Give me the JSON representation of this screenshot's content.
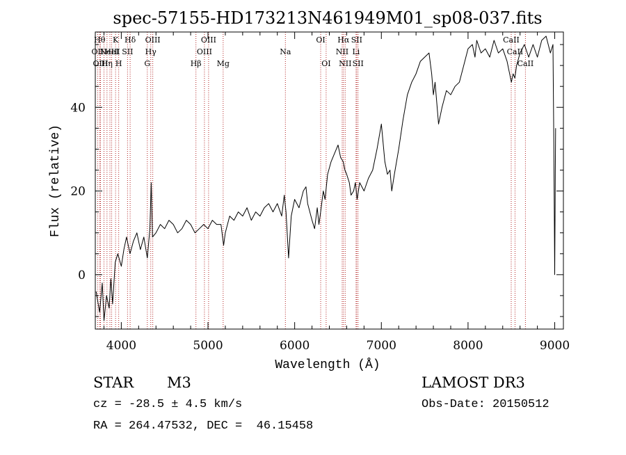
{
  "chart_data": {
    "type": "line",
    "title": "spec-57155-HD173213N461949M01_sp08-037.fits",
    "xlabel": "Wavelength (Å)",
    "ylabel": "Flux (relative)",
    "xlim": [
      3700,
      9100
    ],
    "ylim": [
      -13,
      58
    ],
    "xticks": [
      4000,
      5000,
      6000,
      7000,
      8000,
      9000
    ],
    "xtick_labels": [
      "4000",
      "5000",
      "6000",
      "7000",
      "8000",
      "9000"
    ],
    "yticks": [
      0,
      20,
      40
    ],
    "ytick_labels": [
      "0",
      "20",
      "40"
    ],
    "line_color": "#000000",
    "marker_color": "#b22222",
    "spectrum": {
      "x": [
        3710,
        3750,
        3780,
        3800,
        3830,
        3860,
        3880,
        3900,
        3930,
        3960,
        4000,
        4030,
        4060,
        4100,
        4140,
        4180,
        4220,
        4260,
        4300,
        4330,
        4345,
        4360,
        4400,
        4450,
        4500,
        4550,
        4600,
        4650,
        4700,
        4750,
        4800,
        4850,
        4900,
        4950,
        5000,
        5050,
        5100,
        5150,
        5180,
        5200,
        5250,
        5300,
        5350,
        5400,
        5450,
        5500,
        5550,
        5600,
        5650,
        5700,
        5750,
        5800,
        5850,
        5880,
        5890,
        5900,
        5930,
        5960,
        6000,
        6050,
        6100,
        6130,
        6150,
        6200,
        6230,
        6260,
        6280,
        6300,
        6330,
        6350,
        6380,
        6420,
        6460,
        6500,
        6530,
        6560,
        6580,
        6600,
        6630,
        6650,
        6680,
        6700,
        6720,
        6750,
        6800,
        6850,
        6900,
        6950,
        7000,
        7040,
        7070,
        7100,
        7120,
        7150,
        7200,
        7250,
        7300,
        7350,
        7400,
        7450,
        7500,
        7550,
        7580,
        7600,
        7620,
        7640,
        7660,
        7680,
        7700,
        7750,
        7800,
        7850,
        7900,
        7950,
        8000,
        8050,
        8080,
        8100,
        8150,
        8200,
        8250,
        8300,
        8350,
        8400,
        8450,
        8500,
        8520,
        8540,
        8560,
        8600,
        8650,
        8700,
        8750,
        8800,
        8850,
        8900,
        8950,
        8980,
        8990,
        9000,
        9005,
        9010
      ],
      "y": [
        -4,
        -9,
        -2,
        -11,
        -5,
        -8,
        -1,
        -7,
        3,
        5,
        2,
        6,
        9,
        5,
        8,
        10,
        6,
        9,
        4,
        11,
        22,
        9,
        10,
        12,
        11,
        13,
        12,
        10,
        11,
        13,
        12,
        10,
        11,
        12,
        11,
        13,
        12,
        12,
        7,
        10,
        14,
        13,
        15,
        14,
        16,
        13,
        15,
        14,
        16,
        17,
        15,
        17,
        14,
        19,
        17,
        15,
        4,
        14,
        18,
        16,
        20,
        21,
        17,
        13,
        11,
        16,
        12,
        15,
        20,
        18,
        24,
        27,
        29,
        31,
        28,
        27,
        25,
        24,
        22,
        19,
        20,
        22,
        18,
        22,
        20,
        23,
        25,
        30,
        36,
        27,
        24,
        25,
        20,
        24,
        30,
        37,
        43,
        46,
        48,
        51,
        52,
        53,
        48,
        43,
        46,
        41,
        36,
        38,
        40,
        44,
        43,
        45,
        46,
        50,
        54,
        55,
        52,
        56,
        53,
        54,
        52,
        56,
        53,
        54,
        51,
        46,
        48,
        47,
        50,
        53,
        55,
        52,
        55,
        52,
        56,
        57,
        53,
        55,
        30,
        0,
        20,
        35
      ]
    },
    "lines": [
      {
        "wl": 3727,
        "labels": [
          {
            "text": "OII",
            "row": 1
          }
        ]
      },
      {
        "wl": 3750,
        "labels": [
          {
            "text": "Hθ",
            "row": 0
          }
        ]
      },
      {
        "wl": 3760,
        "labels": [
          {
            "text": "OIII",
            "row": 2
          }
        ]
      },
      {
        "wl": 3800,
        "labels": []
      },
      {
        "wl": 3835,
        "labels": [
          {
            "text": "Hη",
            "row": 2
          }
        ]
      },
      {
        "wl": 3869,
        "labels": [
          {
            "text": "NeIII",
            "row": 1
          }
        ]
      },
      {
        "wl": 3889,
        "labels": [
          {
            "text": "HeI",
            "row": 1
          }
        ]
      },
      {
        "wl": 3934,
        "labels": [
          {
            "text": "K",
            "row": 0
          }
        ]
      },
      {
        "wl": 3970,
        "labels": [
          {
            "text": "H",
            "row": 2
          }
        ]
      },
      {
        "wl": 4072,
        "labels": [
          {
            "text": "SII",
            "row": 1
          }
        ]
      },
      {
        "wl": 4102,
        "labels": [
          {
            "text": "Hδ",
            "row": 0
          }
        ]
      },
      {
        "wl": 4300,
        "labels": [
          {
            "text": "G",
            "row": 2
          }
        ]
      },
      {
        "wl": 4340,
        "labels": [
          {
            "text": "Hγ",
            "row": 1
          }
        ]
      },
      {
        "wl": 4363,
        "labels": [
          {
            "text": "OIII",
            "row": 0
          }
        ]
      },
      {
        "wl": 4861,
        "labels": [
          {
            "text": "Hβ",
            "row": 2
          }
        ]
      },
      {
        "wl": 4959,
        "labels": [
          {
            "text": "OIII",
            "row": 1
          }
        ]
      },
      {
        "wl": 5007,
        "labels": [
          {
            "text": "OIII",
            "row": 0
          }
        ]
      },
      {
        "wl": 5175,
        "labels": [
          {
            "text": "Mg",
            "row": 2
          }
        ]
      },
      {
        "wl": 5893,
        "labels": [
          {
            "text": "Na",
            "row": 1
          }
        ]
      },
      {
        "wl": 6300,
        "labels": [
          {
            "text": "OI",
            "row": 0
          }
        ]
      },
      {
        "wl": 6363,
        "labels": [
          {
            "text": "OI",
            "row": 2
          }
        ]
      },
      {
        "wl": 6548,
        "labels": [
          {
            "text": "NII",
            "row": 1
          }
        ]
      },
      {
        "wl": 6563,
        "labels": [
          {
            "text": "Hα",
            "row": 0
          }
        ]
      },
      {
        "wl": 6583,
        "labels": [
          {
            "text": "NII",
            "row": 2
          }
        ]
      },
      {
        "wl": 6708,
        "labels": [
          {
            "text": "Li",
            "row": 1
          }
        ]
      },
      {
        "wl": 6716,
        "labels": [
          {
            "text": "SII",
            "row": 0
          }
        ]
      },
      {
        "wl": 6731,
        "labels": [
          {
            "text": "SII",
            "row": 2
          }
        ]
      },
      {
        "wl": 8498,
        "labels": [
          {
            "text": "CaII",
            "row": 0
          }
        ]
      },
      {
        "wl": 8542,
        "labels": [
          {
            "text": "CaII",
            "row": 1
          }
        ]
      },
      {
        "wl": 8662,
        "labels": [
          {
            "text": "CaII",
            "row": 2
          }
        ]
      }
    ]
  },
  "info": {
    "object_type": "STAR",
    "subclass": "M3",
    "survey": "LAMOST DR3",
    "cz": "cz = -28.5 ± 4.5 km/s",
    "obs_date": "Obs-Date: 20150512",
    "coords": "RA = 264.47532, DEC =  46.15458"
  }
}
